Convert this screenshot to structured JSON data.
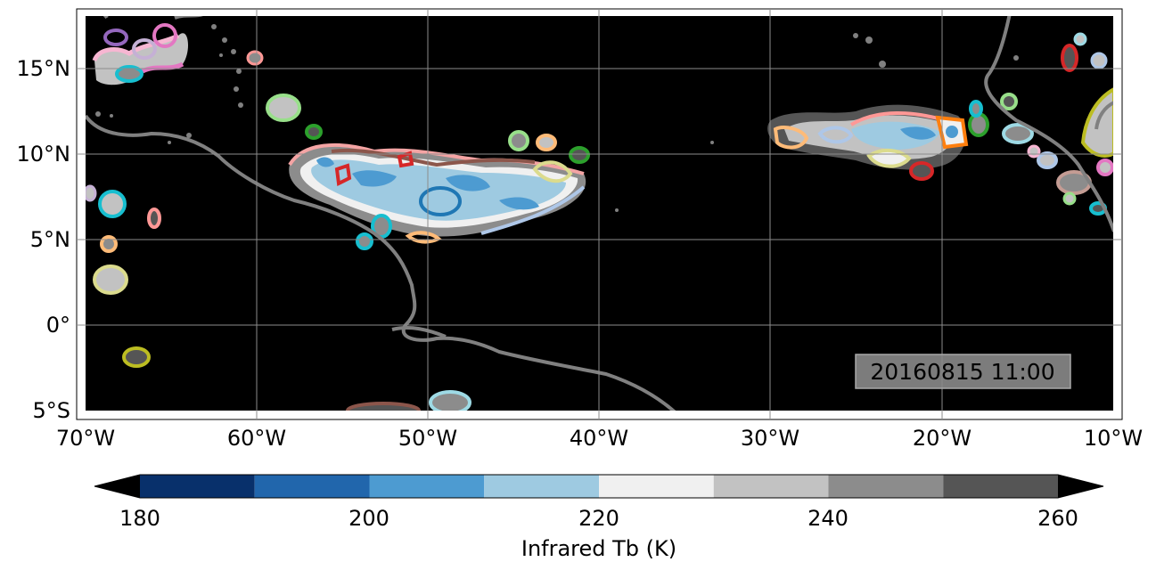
{
  "map": {
    "timestamp": "20160815 11:00",
    "background_color": "#000000",
    "coastline_color": "#808080",
    "gridline_color": "#8c8c8c",
    "lon_ticks": [
      "70°W",
      "60°W",
      "50°W",
      "40°W",
      "30°W",
      "20°W",
      "10°W"
    ],
    "lat_ticks": [
      "15°N",
      "10°N",
      "5°N",
      "0°",
      "5°S"
    ],
    "extent": {
      "lon_min": -70,
      "lon_max": -10,
      "lat_min": -5,
      "lat_max": 18
    }
  },
  "colorbar": {
    "label": "Infrared Tb (K)",
    "tick_labels": [
      "180",
      "200",
      "220",
      "240",
      "260"
    ],
    "bins": [
      {
        "from": 180,
        "to": 190,
        "color": "#08306b"
      },
      {
        "from": 190,
        "to": 200,
        "color": "#2166ac"
      },
      {
        "from": 200,
        "to": 210,
        "color": "#4d9bd1"
      },
      {
        "from": 210,
        "to": 220,
        "color": "#9ecae1"
      },
      {
        "from": 220,
        "to": 230,
        "color": "#f0f0f0"
      },
      {
        "from": 230,
        "to": 240,
        "color": "#c2c2c2"
      },
      {
        "from": 240,
        "to": 250,
        "color": "#8c8c8c"
      },
      {
        "from": 250,
        "to": 260,
        "color": "#555555"
      }
    ],
    "extend_low_color": "#000000",
    "extend_high_color": "#000000"
  }
}
